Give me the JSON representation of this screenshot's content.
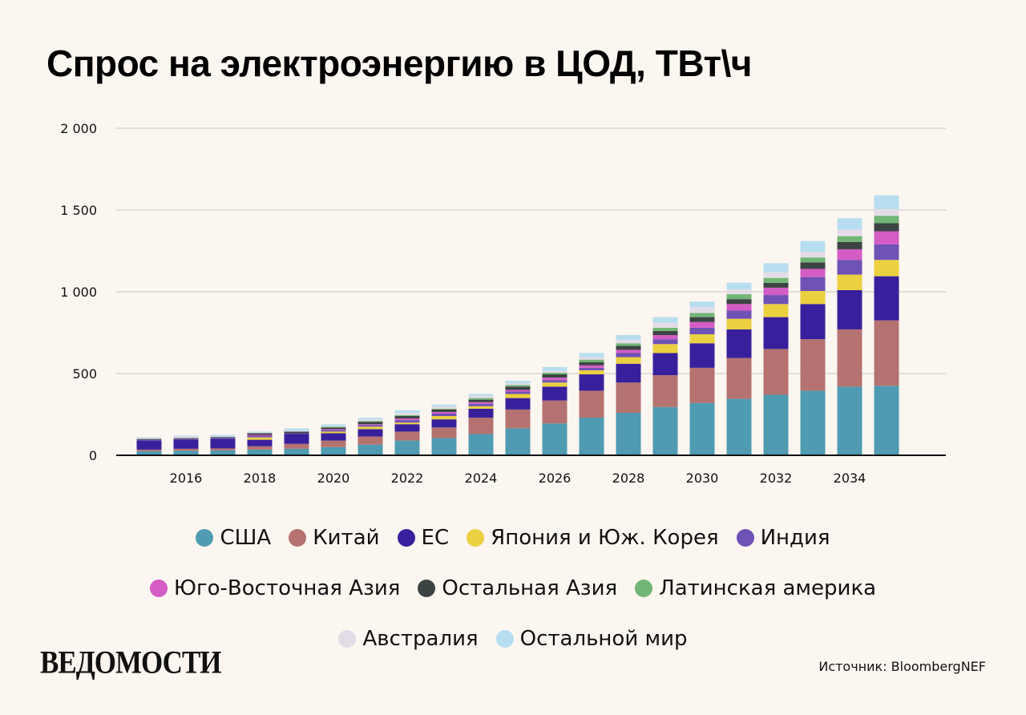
{
  "title": "Спрос на электроэнергию в ЦОД, ТВт\\ч",
  "source": "Источник: BloombergNEF",
  "logo": "ВЕДОМОСТИ",
  "chart_data": {
    "type": "bar",
    "stacked": true,
    "title": "Спрос на электроэнергию в ЦОД, ТВт\\ч",
    "xlabel": "",
    "ylabel": "",
    "ylim": [
      0,
      2000
    ],
    "yticks": [
      0,
      500,
      1000,
      1500,
      2000
    ],
    "ytick_labels": [
      "0",
      "500",
      "1 000",
      "1 500",
      "2 000"
    ],
    "xtick_labels": [
      "2016",
      "2018",
      "2020",
      "2022",
      "2024",
      "2026",
      "2028",
      "2030",
      "2032",
      "2034"
    ],
    "grid": true,
    "legend_position": "bottom",
    "categories": [
      2015,
      2016,
      2017,
      2018,
      2019,
      2020,
      2021,
      2022,
      2023,
      2024,
      2025,
      2026,
      2027,
      2028,
      2029,
      2030,
      2031,
      2032,
      2033,
      2034,
      2035
    ],
    "series": [
      {
        "name": "США",
        "color": "#4e9bb2",
        "values": [
          25,
          28,
          30,
          35,
          40,
          50,
          65,
          90,
          105,
          130,
          165,
          195,
          230,
          260,
          295,
          320,
          345,
          370,
          395,
          420,
          425
        ]
      },
      {
        "name": "Китай",
        "color": "#b47370",
        "values": [
          10,
          12,
          12,
          20,
          30,
          40,
          50,
          55,
          65,
          100,
          115,
          140,
          165,
          185,
          195,
          215,
          250,
          280,
          315,
          350,
          400
        ]
      },
      {
        "name": "ЕС",
        "color": "#38209c",
        "values": [
          55,
          55,
          60,
          40,
          60,
          45,
          45,
          45,
          50,
          55,
          70,
          85,
          100,
          115,
          135,
          150,
          175,
          195,
          215,
          240,
          270
        ]
      },
      {
        "name": "Япония и Юж. Корея",
        "color": "#ebd040",
        "values": [
          0,
          0,
          0,
          15,
          0,
          10,
          15,
          10,
          20,
          15,
          25,
          25,
          25,
          40,
          55,
          55,
          65,
          80,
          80,
          95,
          100
        ]
      },
      {
        "name": "Индия",
        "color": "#6e52b5",
        "values": [
          5,
          5,
          5,
          10,
          5,
          10,
          10,
          15,
          15,
          15,
          15,
          15,
          15,
          25,
          30,
          40,
          50,
          55,
          85,
          90,
          95
        ]
      },
      {
        "name": "Юго-Восточная Азия",
        "color": "#d45cc5",
        "values": [
          0,
          0,
          0,
          5,
          0,
          5,
          5,
          10,
          10,
          10,
          10,
          15,
          15,
          20,
          25,
          35,
          40,
          45,
          50,
          65,
          80
        ]
      },
      {
        "name": "Остальная Азия",
        "color": "#3b4443",
        "values": [
          5,
          5,
          5,
          10,
          10,
          10,
          15,
          15,
          15,
          15,
          20,
          20,
          20,
          25,
          25,
          30,
          30,
          30,
          40,
          45,
          50
        ]
      },
      {
        "name": "Латинская америка",
        "color": "#72b676",
        "values": [
          0,
          0,
          0,
          0,
          0,
          5,
          5,
          5,
          5,
          10,
          10,
          10,
          15,
          15,
          20,
          25,
          30,
          30,
          30,
          35,
          45
        ]
      },
      {
        "name": "Австралия",
        "color": "#e3dce6",
        "values": [
          5,
          10,
          5,
          5,
          5,
          5,
          10,
          15,
          15,
          15,
          10,
          10,
          15,
          20,
          30,
          35,
          30,
          35,
          35,
          40,
          40
        ]
      },
      {
        "name": "Остальной мир",
        "color": "#b7def0",
        "values": [
          5,
          5,
          8,
          5,
          15,
          10,
          10,
          15,
          10,
          10,
          15,
          25,
          25,
          30,
          35,
          35,
          40,
          55,
          65,
          70,
          85
        ]
      }
    ]
  },
  "legend_rows": [
    [
      0,
      1,
      2,
      3,
      4
    ],
    [
      5,
      6,
      7
    ],
    [
      8,
      9
    ]
  ]
}
